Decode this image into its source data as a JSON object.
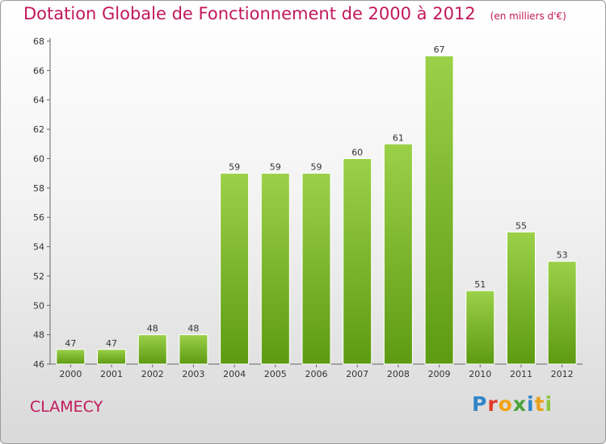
{
  "header": {
    "title": "Dotation Globale de Fonctionnement de 2000 à 2012",
    "subtitle": "(en milliers d'€)"
  },
  "commune": "CLAMECY",
  "logo": {
    "text": "Proxiti"
  },
  "colors": {
    "title": "#c2185b",
    "bar_top": "#9bd149",
    "bar_bottom": "#5d9a12"
  },
  "chart_data": {
    "type": "bar",
    "title": "Dotation Globale de Fonctionnement de 2000 à 2012",
    "subtitle": "(en milliers d'€)",
    "xlabel": "",
    "ylabel": "",
    "categories": [
      "2000",
      "2001",
      "2002",
      "2003",
      "2004",
      "2005",
      "2006",
      "2007",
      "2008",
      "2009",
      "2010",
      "2011",
      "2012"
    ],
    "values": [
      47,
      47,
      48,
      48,
      59,
      59,
      59,
      60,
      61,
      67,
      51,
      55,
      53
    ],
    "ylim": [
      46,
      68
    ],
    "yticks": [
      46,
      48,
      50,
      52,
      54,
      56,
      58,
      60,
      62,
      64,
      66,
      68
    ],
    "grid": false,
    "legend": "none",
    "data_labels": true
  }
}
